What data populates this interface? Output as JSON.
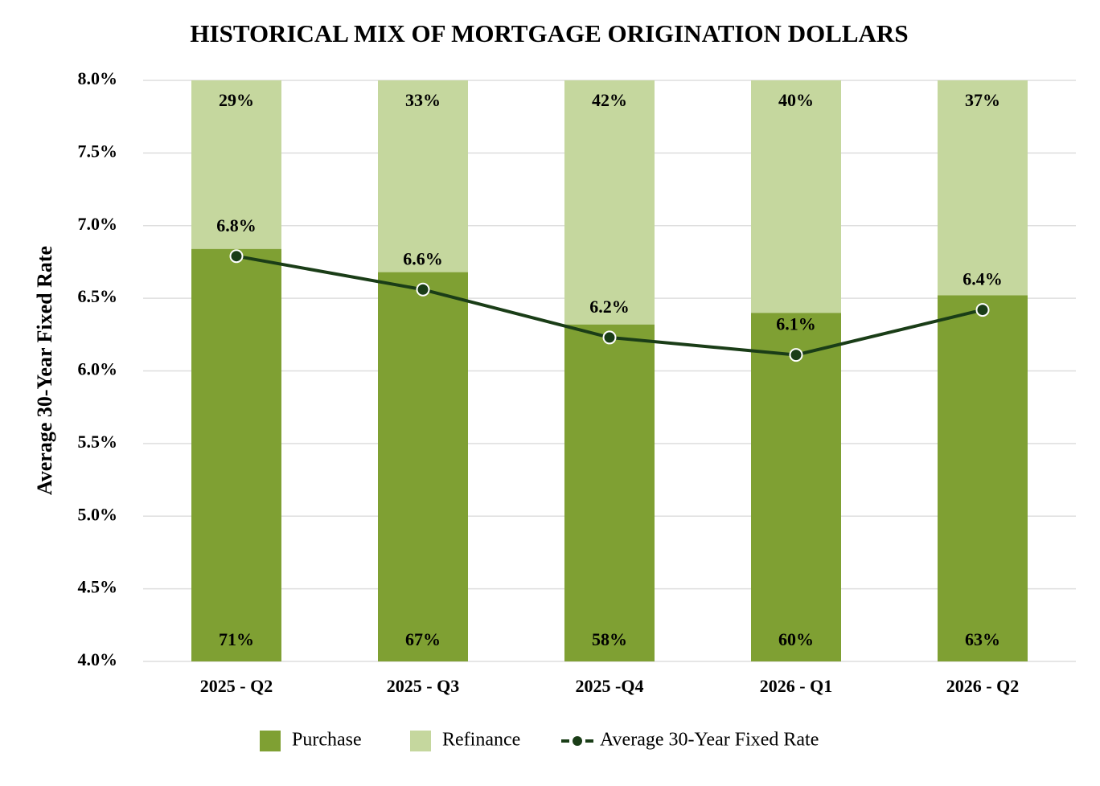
{
  "chart_data": {
    "type": "bar_line",
    "title": "HISTORICAL MIX OF MORTGAGE ORIGINATION DOLLARS",
    "y_axis_label": "Average 30-Year Fixed Rate",
    "categories": [
      "2025 - Q2",
      "2025 - Q3",
      "2025 -Q4",
      "2026 - Q1",
      "2026 - Q2"
    ],
    "series": [
      {
        "name": "Purchase",
        "type": "bar",
        "axis": "y2",
        "color": "#7fa033",
        "values": [
          71,
          67,
          58,
          60,
          63
        ],
        "value_labels": [
          "71%",
          "67%",
          "58%",
          "60%",
          "63%"
        ]
      },
      {
        "name": "Refinance",
        "type": "bar",
        "axis": "y2",
        "color": "#c5d79e",
        "values": [
          29,
          33,
          42,
          40,
          37
        ],
        "value_labels": [
          "29%",
          "33%",
          "42%",
          "40%",
          "37%"
        ]
      },
      {
        "name": "Average 30-Year Fixed Rate",
        "type": "line",
        "color": "#1a3d17",
        "values": [
          6.79,
          6.56,
          6.23,
          6.11,
          6.42
        ],
        "value_labels": [
          "6.8%",
          "6.6%",
          "6.2%",
          "6.1%",
          "6.4%"
        ]
      }
    ],
    "ylim": [
      4.0,
      8.0
    ],
    "yticks": [
      {
        "value": 4.0,
        "label": "4.0%"
      },
      {
        "value": 4.5,
        "label": "4.5%"
      },
      {
        "value": 5.0,
        "label": "5.0%"
      },
      {
        "value": 5.5,
        "label": "5.5%"
      },
      {
        "value": 6.0,
        "label": "6.0%"
      },
      {
        "value": 6.5,
        "label": "6.5%"
      },
      {
        "value": 7.0,
        "label": "7.0%"
      },
      {
        "value": 7.5,
        "label": "7.5%"
      },
      {
        "value": 8.0,
        "label": "8.0%"
      }
    ],
    "y2lim": [
      0,
      100
    ],
    "grid": true,
    "legend": "bottom"
  }
}
